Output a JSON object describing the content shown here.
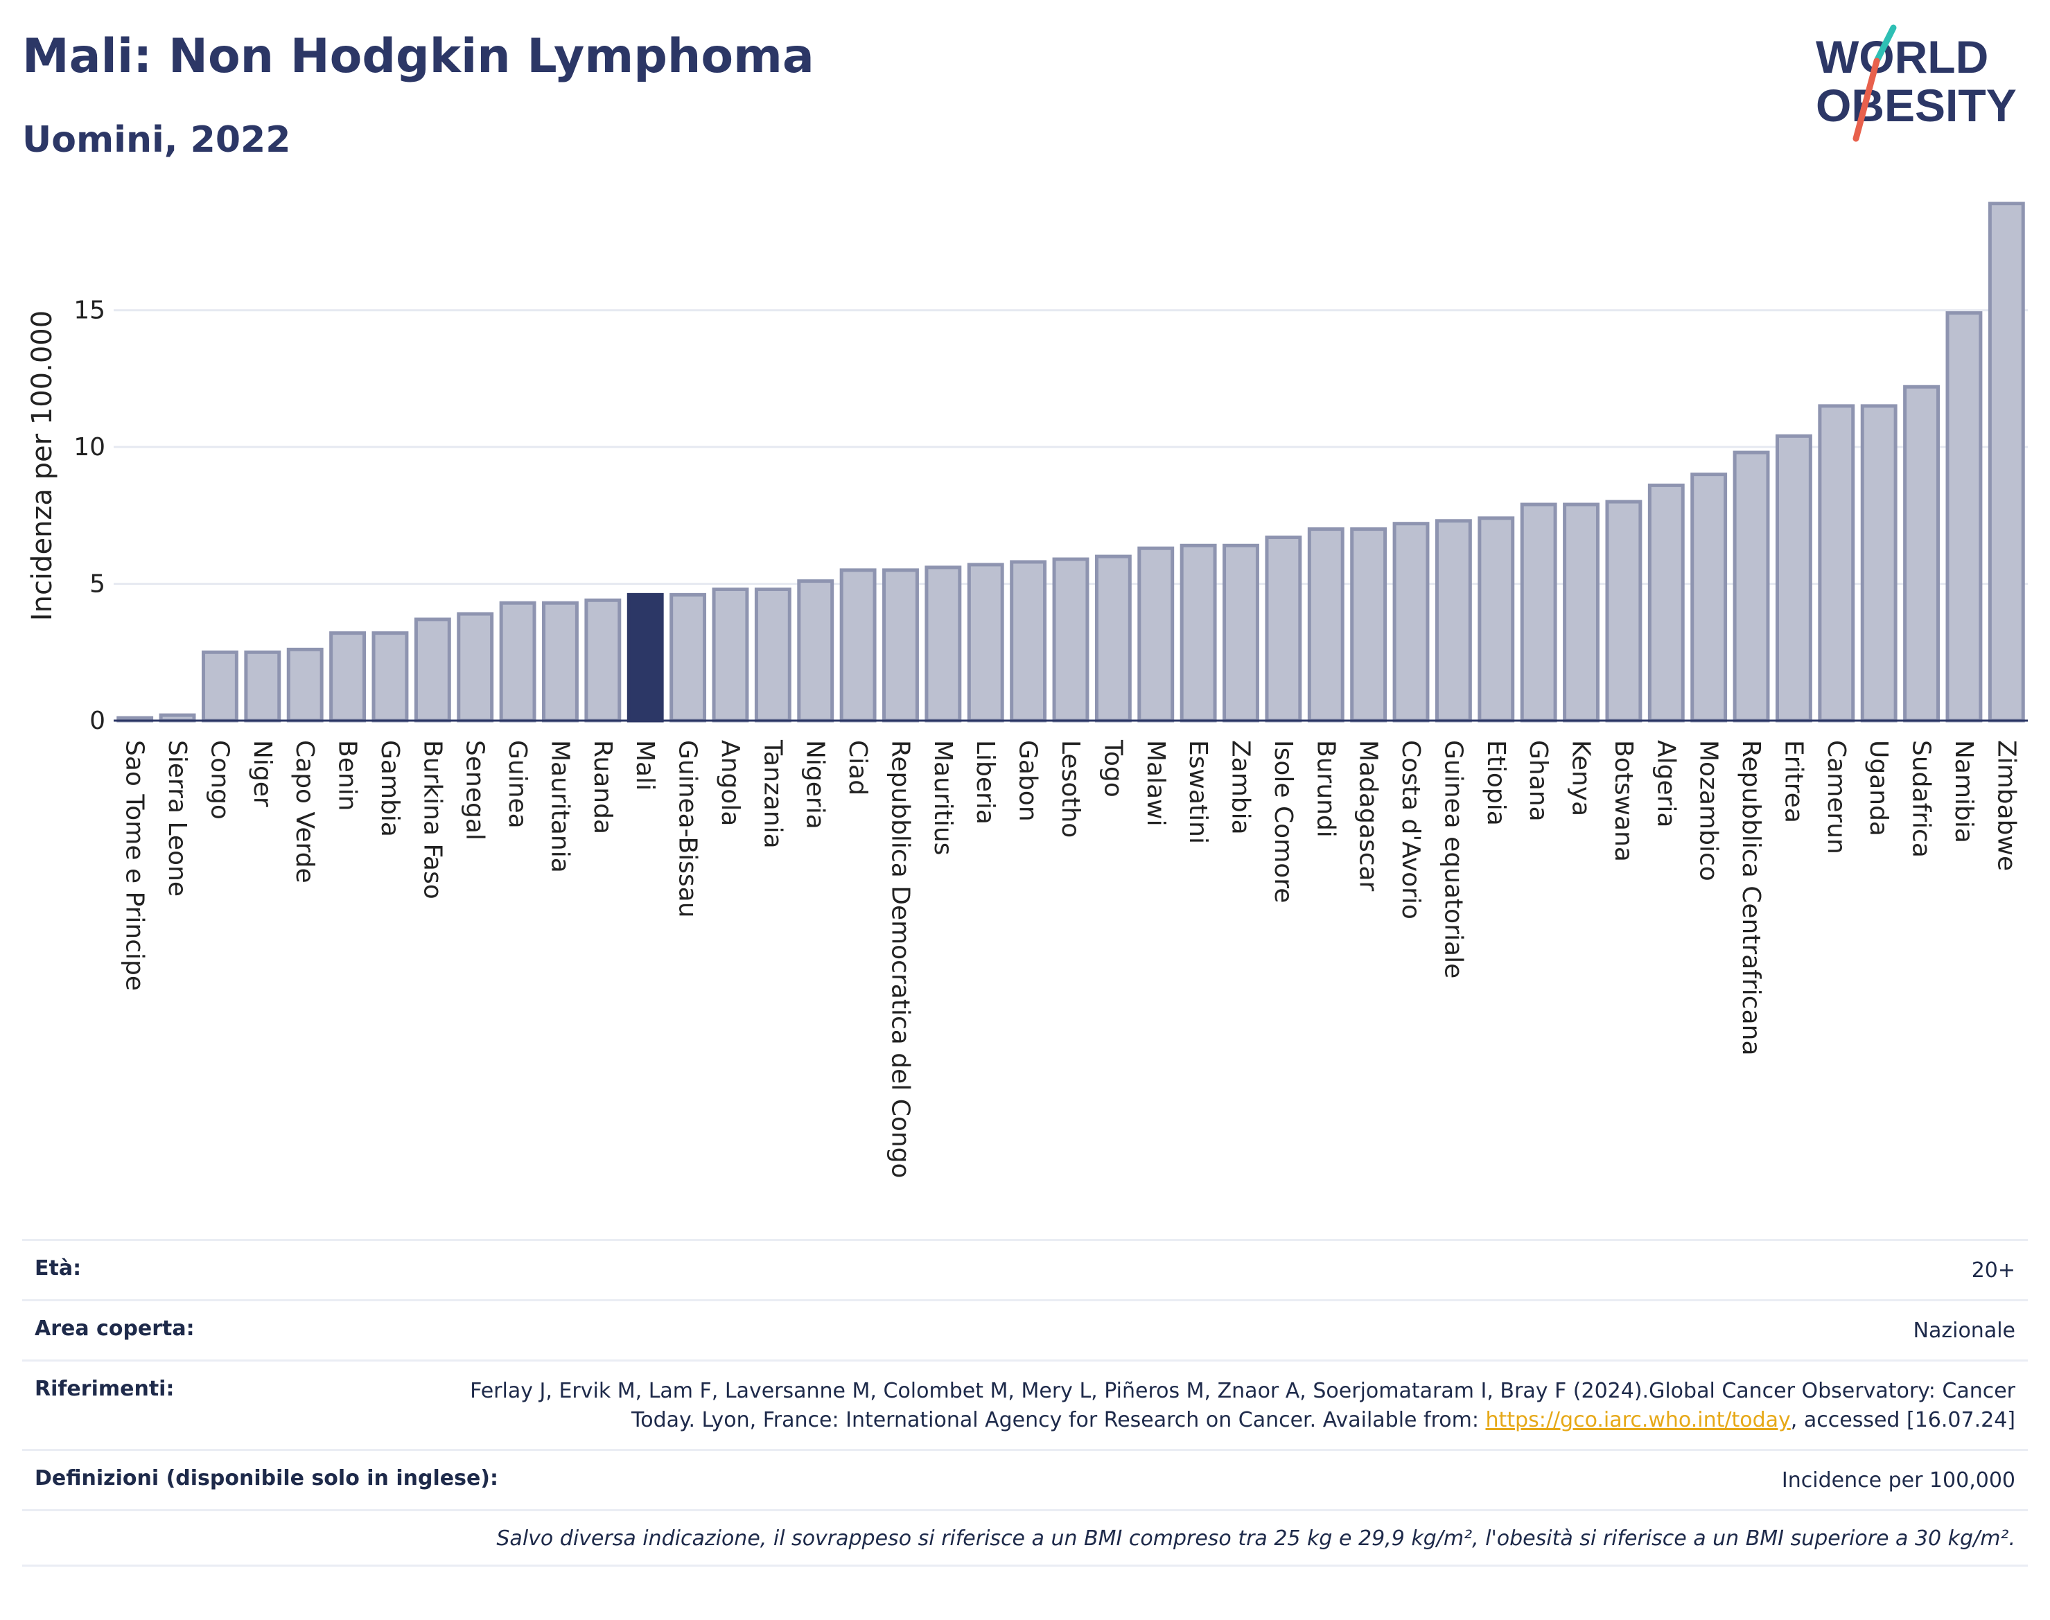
{
  "header": {
    "title": "Mali: Non Hodgkin Lymphoma",
    "subtitle": "Uomini, 2022"
  },
  "logo": {
    "line1": "WORLD",
    "line2": "OBESITY"
  },
  "colors": {
    "highlight": "#2c3766",
    "bar_fill": "#bcc0d0",
    "bar_stroke": "#8e94b0",
    "text": "#2c3766",
    "link": "#e6a817"
  },
  "chart_data": {
    "type": "bar",
    "ylabel": "Incidenza per 100.000",
    "ylim": [
      0,
      19.5
    ],
    "yticks": [
      0,
      5,
      10,
      15
    ],
    "grid": true,
    "highlight": "Mali",
    "categories": [
      "Sao Tome e Principe",
      "Sierra Leone",
      "Congo",
      "Niger",
      "Capo Verde",
      "Benin",
      "Gambia",
      "Burkina Faso",
      "Senegal",
      "Guinea",
      "Mauritania",
      "Ruanda",
      "Mali",
      "Guinea-Bissau",
      "Angola",
      "Tanzania",
      "Nigeria",
      "Ciad",
      "Repubblica Democratica del Congo",
      "Mauritius",
      "Liberia",
      "Gabon",
      "Lesotho",
      "Togo",
      "Malawi",
      "Eswatini",
      "Zambia",
      "Isole Comore",
      "Burundi",
      "Madagascar",
      "Costa d'Avorio",
      "Guinea equatoriale",
      "Etiopia",
      "Ghana",
      "Kenya",
      "Botswana",
      "Algeria",
      "Mozambico",
      "Repubblica Centrafricana",
      "Eritrea",
      "Camerun",
      "Uganda",
      "Sudafrica",
      "Namibia",
      "Zimbabwe"
    ],
    "values": [
      0.1,
      0.2,
      2.5,
      2.5,
      2.6,
      3.2,
      3.2,
      3.7,
      3.9,
      4.3,
      4.3,
      4.4,
      4.6,
      4.6,
      4.8,
      4.8,
      5.1,
      5.5,
      5.5,
      5.6,
      5.7,
      5.8,
      5.9,
      6.0,
      6.3,
      6.4,
      6.4,
      6.7,
      7.0,
      7.0,
      7.2,
      7.3,
      7.4,
      7.9,
      7.9,
      8.0,
      8.6,
      9.0,
      9.8,
      10.4,
      11.5,
      11.5,
      12.2,
      14.9,
      18.9
    ]
  },
  "info": {
    "age_label": "Età:",
    "age_value": "20+",
    "area_label": "Area coperta:",
    "area_value": "Nazionale",
    "ref_label": "Riferimenti:",
    "ref_text": "Ferlay J, Ervik M, Lam F, Laversanne M, Colombet M, Mery L, Piñeros M, Znaor A, Soerjomataram I, Bray F (2024).Global Cancer Observatory: Cancer Today. Lyon, France: International Agency for Research on Cancer. Available from: ",
    "ref_link": "https://gco.iarc.who.int/today",
    "ref_tail": ", accessed [16.07.24]",
    "def_label": "Definizioni (disponibile solo in inglese):",
    "def_value": "Incidence per 100,000",
    "note": "Salvo diversa indicazione, il sovrappeso si riferisce a un BMI compreso tra 25 kg e 29,9 kg/m², l'obesità si riferisce a un BMI superiore a 30 kg/m²."
  }
}
